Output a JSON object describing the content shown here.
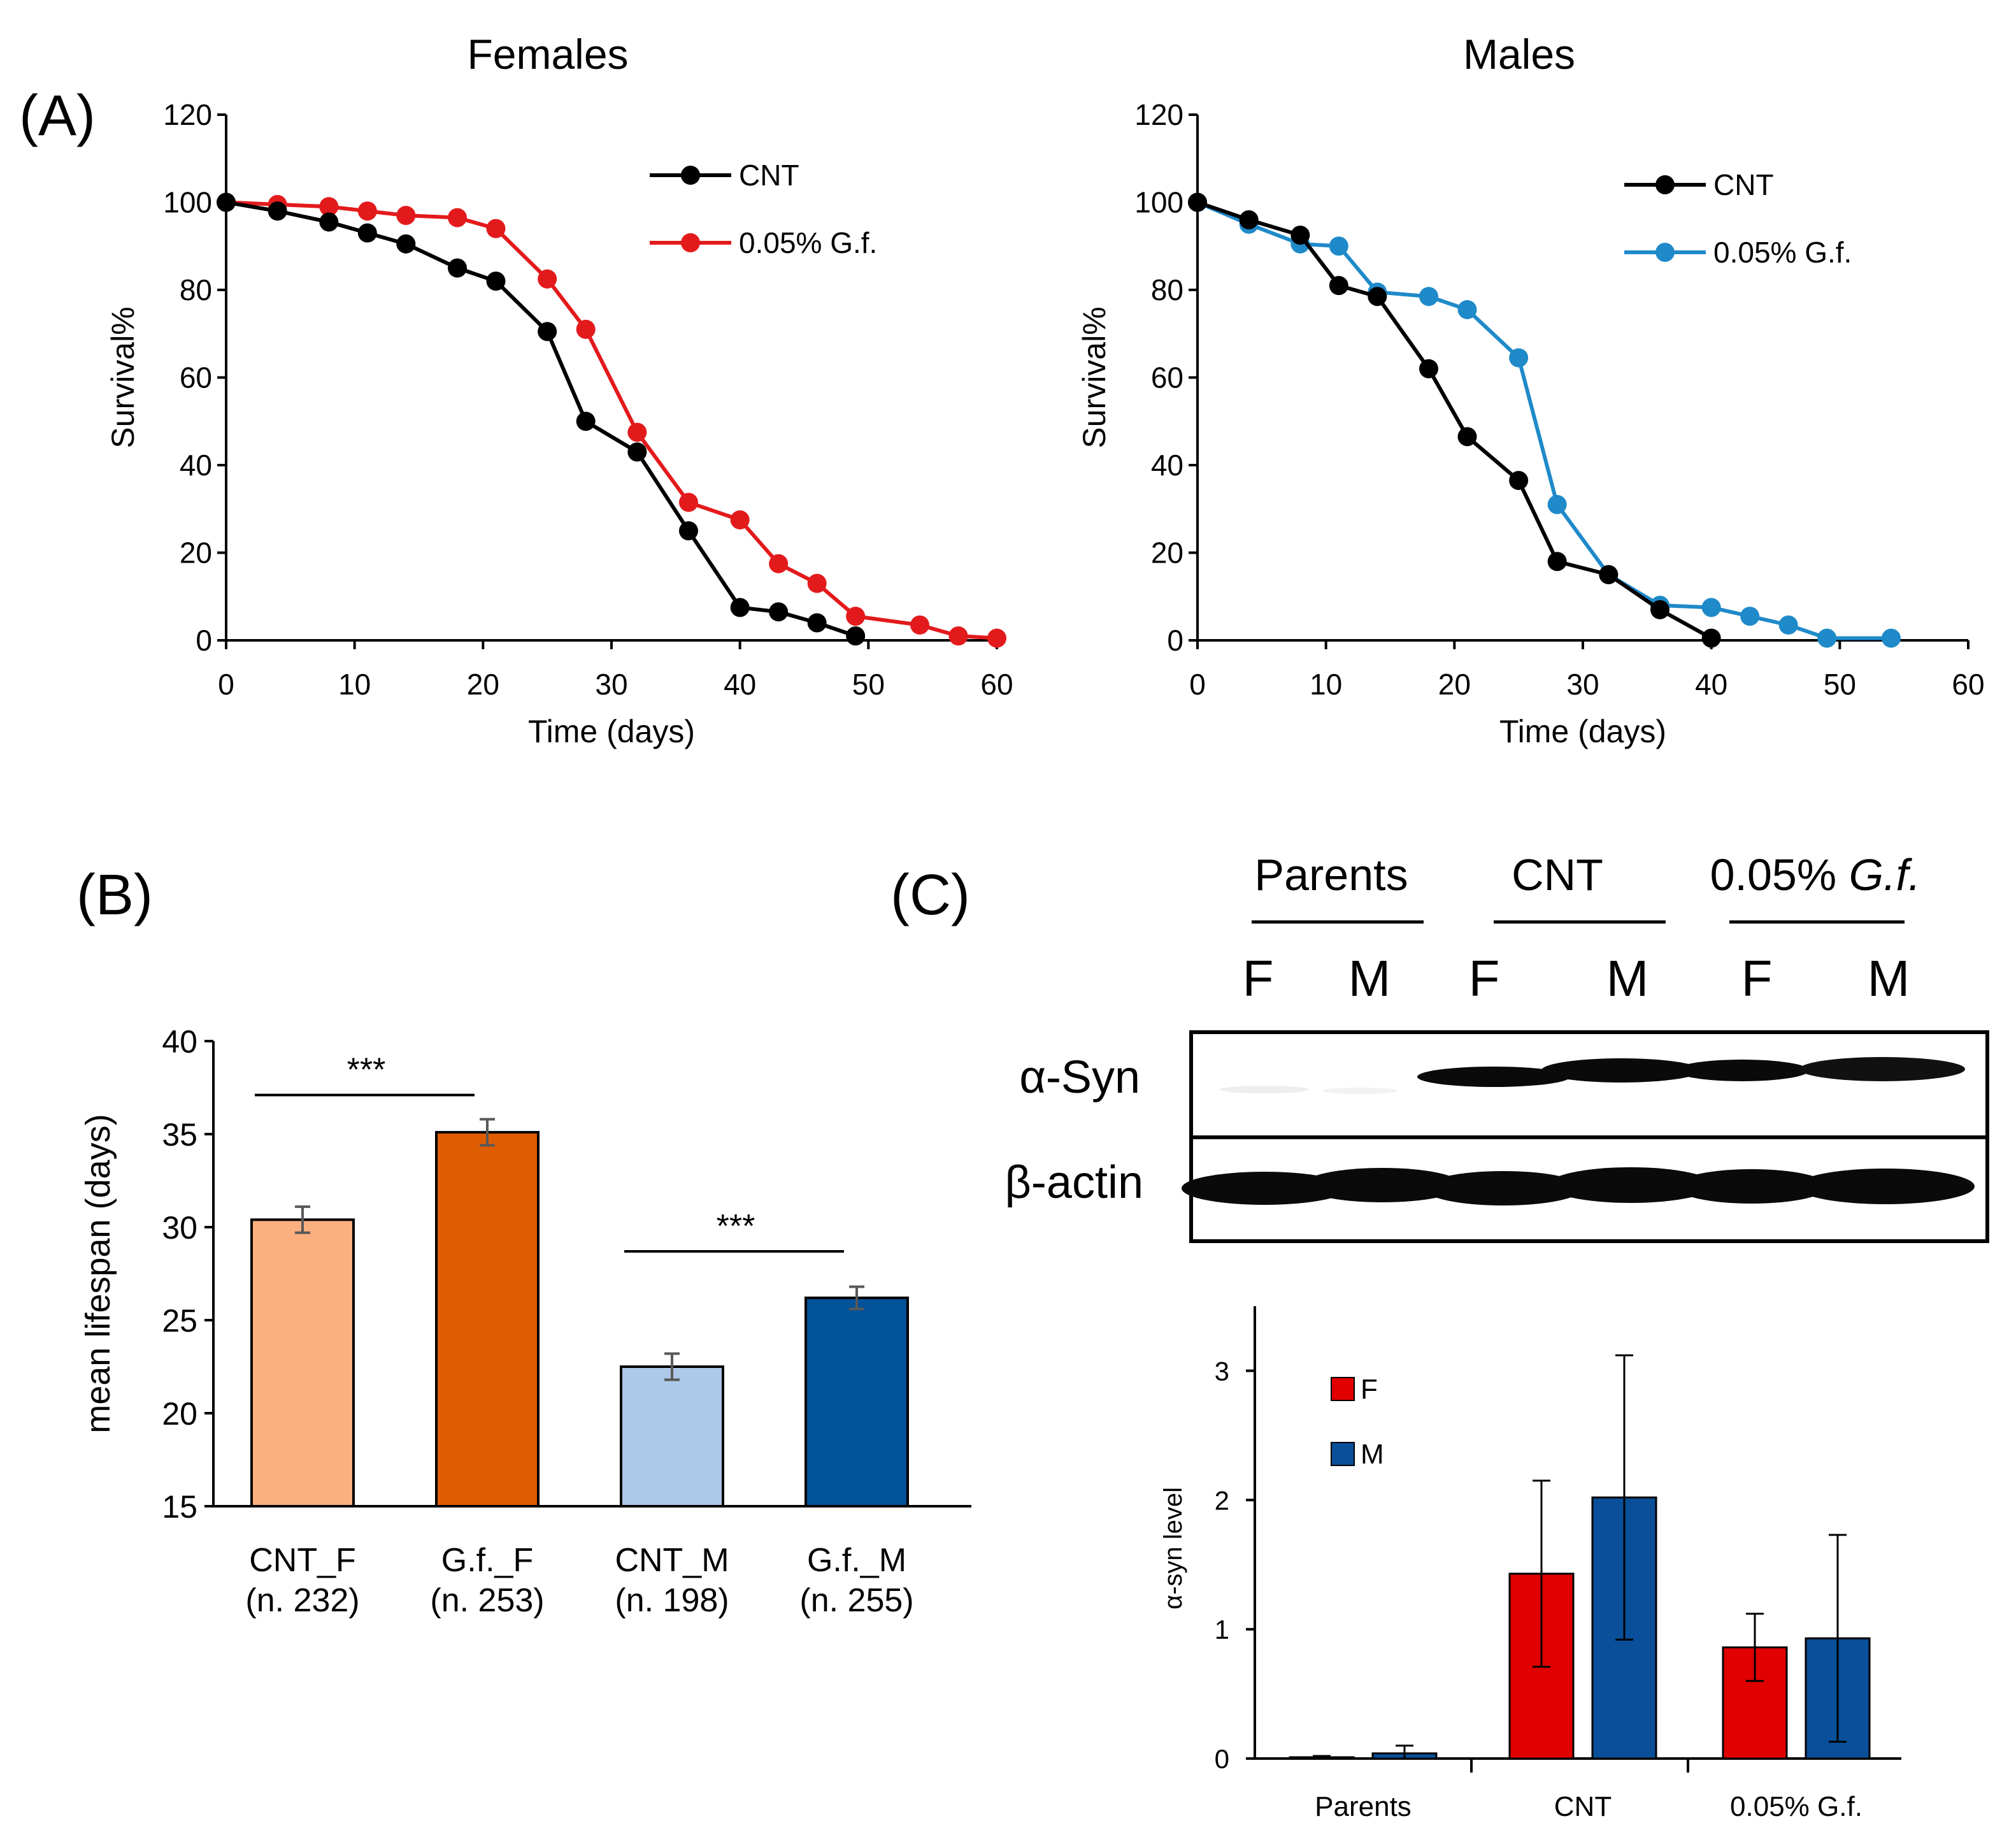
{
  "panel_labels": {
    "a": "(A)",
    "b": "(B)",
    "c": "(C)"
  },
  "colors": {
    "cnt": "#000000",
    "gf_female": "#e31a1c",
    "gf_male": "#1f8ac9",
    "bar_cnt_f": "#fcaf7f",
    "bar_gf_f": "#e05c00",
    "bar_cnt_m": "#adc9ea",
    "bar_gf_m": "#02529a",
    "wb_f": "#e00000",
    "wb_m": "#0a4f9a",
    "error_bar": "#595959"
  },
  "blot": {
    "groups": [
      "Parents",
      "CNT",
      "0.05%"
    ],
    "group3_italic": "G.f.",
    "lanes": [
      "F",
      "M",
      "F",
      "M",
      "F",
      "M"
    ],
    "rows": [
      "α-Syn",
      "β-actin"
    ]
  },
  "chart_data": [
    {
      "type": "line",
      "title": "Females",
      "xlabel": "Time (days)",
      "ylabel": "Survival%",
      "xlim": [
        0,
        60
      ],
      "ylim": [
        0,
        120
      ],
      "xticks": [
        0,
        10,
        20,
        30,
        40,
        50,
        60
      ],
      "yticks": [
        0,
        20,
        40,
        60,
        80,
        100,
        120
      ],
      "legend": "top-right",
      "series": [
        {
          "name": "CNT",
          "color": "#000000",
          "x": [
            0,
            4,
            8,
            11,
            14,
            18,
            21,
            25,
            28,
            32,
            36,
            40,
            43,
            46,
            49
          ],
          "y": [
            100,
            98,
            95.5,
            93,
            90.5,
            85,
            82,
            70.5,
            50,
            43,
            25,
            7.5,
            6.5,
            4,
            1
          ]
        },
        {
          "name": "0.05% G.f.",
          "color": "#e31a1c",
          "x": [
            0,
            4,
            8,
            11,
            14,
            18,
            21,
            25,
            28,
            32,
            36,
            40,
            43,
            46,
            49,
            54,
            57,
            60
          ],
          "y": [
            100,
            99.5,
            99,
            98,
            97,
            96.5,
            94,
            82.5,
            71,
            47.5,
            31.5,
            27.5,
            17.5,
            13,
            5.5,
            3.5,
            1,
            0.5
          ]
        }
      ]
    },
    {
      "type": "line",
      "title": "Males",
      "xlabel": "Time (days)",
      "ylabel": "Survival%",
      "xlim": [
        0,
        60
      ],
      "ylim": [
        0,
        120
      ],
      "xticks": [
        0,
        10,
        20,
        30,
        40,
        50,
        60
      ],
      "yticks": [
        0,
        20,
        40,
        60,
        80,
        100,
        120
      ],
      "legend": "top-right",
      "series": [
        {
          "name": "CNT",
          "color": "#000000",
          "x": [
            0,
            4,
            8,
            11,
            14,
            18,
            21,
            25,
            28,
            32,
            36,
            40
          ],
          "y": [
            100,
            96,
            92.5,
            81,
            78.5,
            62,
            46.5,
            36.5,
            18,
            15,
            7,
            0.5
          ]
        },
        {
          "name": "0.05% G.f.",
          "color": "#1f8ac9",
          "x": [
            0,
            4,
            8,
            11,
            14,
            18,
            21,
            25,
            28,
            32,
            36,
            40,
            43,
            46,
            49,
            54
          ],
          "y": [
            100,
            95,
            90.5,
            90,
            79.5,
            78.5,
            75.5,
            64.5,
            31,
            15,
            8,
            7.5,
            5.5,
            3.5,
            0.5,
            0.5
          ]
        }
      ]
    },
    {
      "type": "bar",
      "title": "",
      "xlabel": "",
      "ylabel": "mean lifespan (days)",
      "ylim": [
        15,
        40
      ],
      "yticks": [
        15,
        20,
        25,
        30,
        35,
        40
      ],
      "categories": [
        "CNT_F",
        "G.f._F",
        "CNT_M",
        "G.f._M"
      ],
      "category_n": [
        "(n. 232)",
        "(n. 253)",
        "(n.  198)",
        "(n. 255)"
      ],
      "values": [
        30.4,
        35.1,
        22.5,
        26.2
      ],
      "errors": [
        0.7,
        0.7,
        0.7,
        0.6
      ],
      "annotations": [
        {
          "text": "***",
          "from": 0,
          "to": 1,
          "level": 37.1
        },
        {
          "text": "***",
          "from": 2,
          "to": 3,
          "level": 28.7
        }
      ]
    },
    {
      "type": "bar",
      "title": "",
      "xlabel": "",
      "ylabel": "α-syn level",
      "ylim": [
        0,
        3.5
      ],
      "yticks": [
        0,
        1,
        2,
        3
      ],
      "categories": [
        "Parents",
        "CNT",
        "0.05% G.f."
      ],
      "legend": "top-left",
      "series": [
        {
          "name": "F",
          "color": "#e00000",
          "values": [
            0.01,
            1.43,
            0.86
          ],
          "errors": [
            0.01,
            0.72,
            0.26
          ]
        },
        {
          "name": "M",
          "color": "#0a4f9a",
          "values": [
            0.04,
            2.02,
            0.93
          ],
          "errors": [
            0.06,
            1.1,
            0.8
          ]
        }
      ]
    }
  ]
}
